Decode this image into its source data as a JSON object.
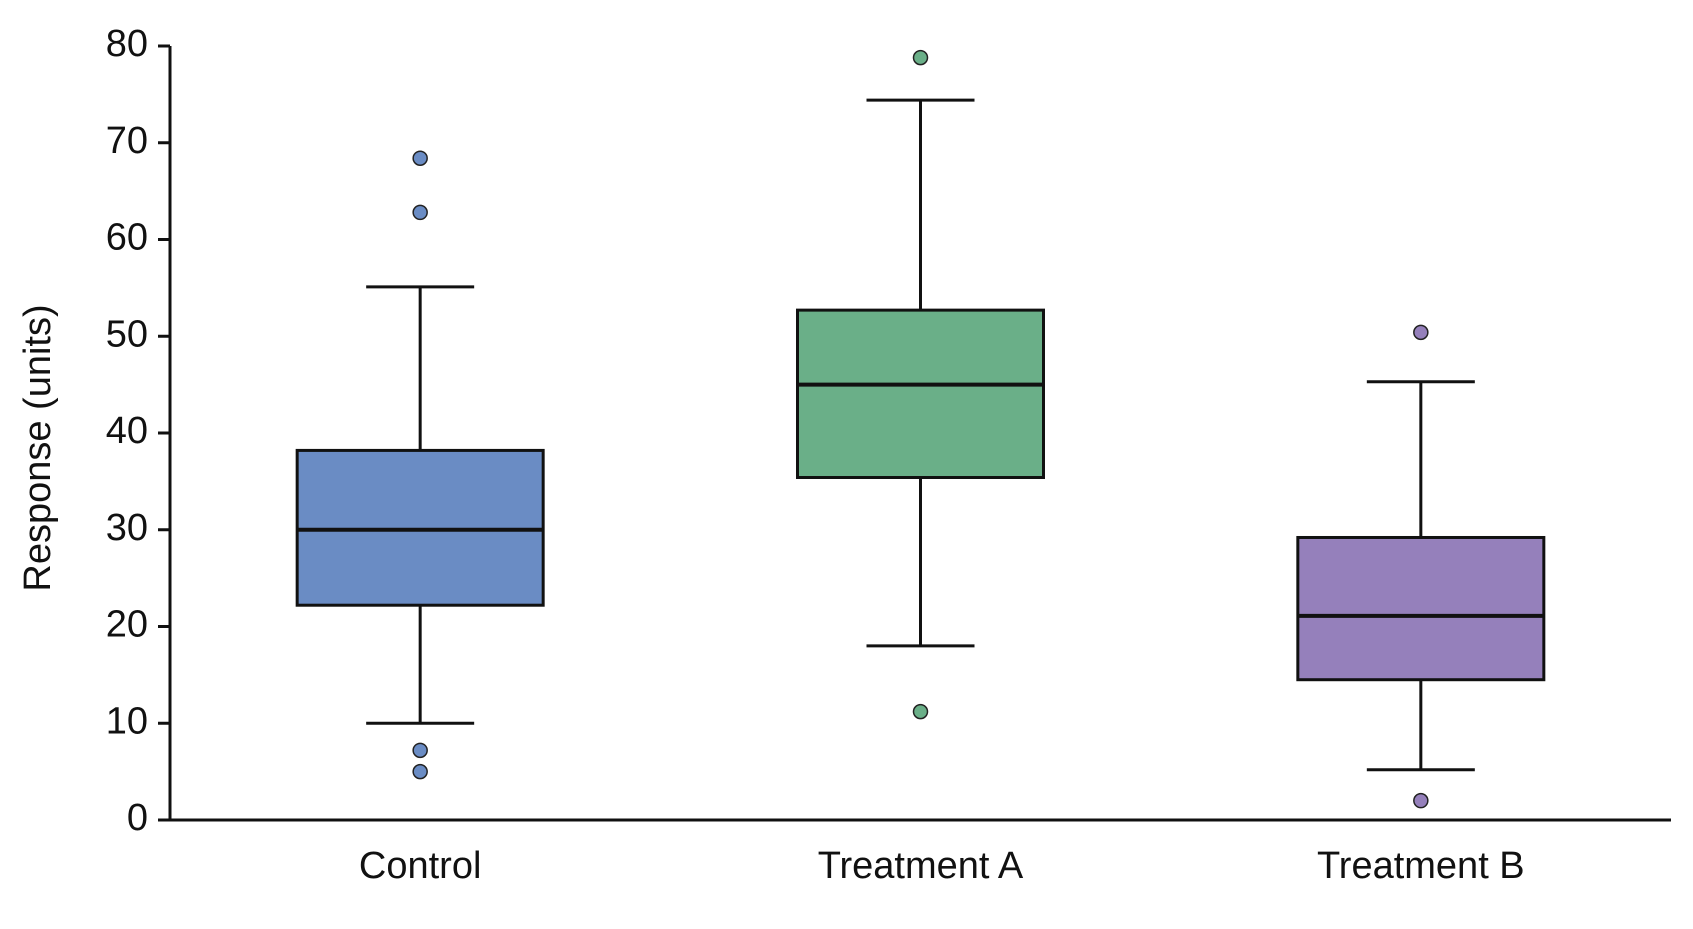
{
  "chart_data": {
    "type": "box",
    "y_label": "Response (units)",
    "categories": [
      "Control",
      "Treatment A",
      "Treatment B"
    ],
    "boxes": [
      {
        "color": "#6a8cc4",
        "whisker_low": 10,
        "q1": 22.2,
        "median": 30,
        "q3": 38.2,
        "whisker_high": 55.1,
        "outliers": [
          68.4,
          62.8,
          7.2,
          5.0
        ]
      },
      {
        "color": "#6aaf88",
        "whisker_low": 18,
        "q1": 35.4,
        "median": 45,
        "q3": 52.7,
        "whisker_high": 74.4,
        "outliers": [
          78.8,
          11.2
        ]
      },
      {
        "color": "#9580bb",
        "whisker_low": 5.2,
        "q1": 14.5,
        "median": 21.1,
        "q3": 29.2,
        "whisker_high": 45.3,
        "outliers": [
          50.4,
          2.0
        ]
      }
    ],
    "ylim": [
      0,
      80
    ],
    "yticks": [
      0,
      10,
      20,
      30,
      40,
      50,
      60,
      70,
      80
    ],
    "grid": false
  }
}
